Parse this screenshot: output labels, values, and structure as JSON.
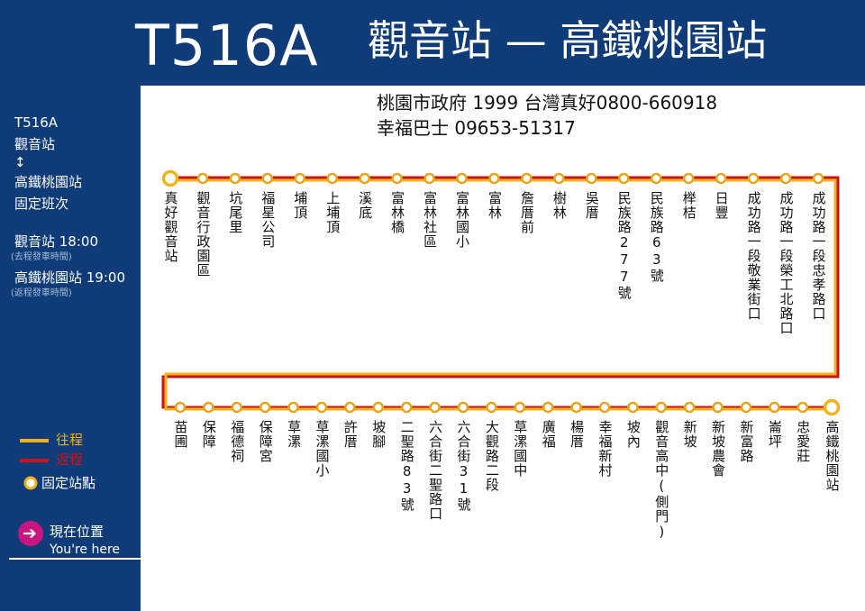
{
  "route": {
    "code": "T516A",
    "title": "觀音站 — 高鐵桃園站"
  },
  "contacts": [
    "桃園市政府 1999  台灣真好0800-660918",
    "幸福巴士 09653-51317"
  ],
  "sidebar": {
    "code": "T516A",
    "from": "觀音站",
    "arrow": "↕",
    "to": "高鐵桃園站",
    "schedule_label": "固定班次",
    "departures": [
      {
        "text": "觀音站 18:00",
        "note": "(去程發車時間)"
      },
      {
        "text": "高鐵桃園站 19:00",
        "note": "(返程發車時間)"
      }
    ]
  },
  "legend": {
    "outbound": "往程",
    "inbound": "返程",
    "fixed_stop": "固定站點",
    "here_cn": "現在位置",
    "here_en": "You're here"
  },
  "colors": {
    "navy": "#0f3c78",
    "outbound": "#f2b21a",
    "inbound": "#c8151b",
    "marker": "#c8157f"
  },
  "stops_outbound": [
    "真好觀音站",
    "觀音行政園區",
    "坑尾里",
    "福星公司",
    "埔頂",
    "上埔頂",
    "溪底",
    "富林橋",
    "富林社區",
    "富林國小",
    "富林",
    "詹厝前",
    "樹林",
    "吳厝",
    "民族路277號",
    "民族路63號",
    "榉桔",
    "日豐",
    "成功路一段敬業街口",
    "成功路一段榮工北路口",
    "成功路一段忠孝路口"
  ],
  "stops_return": [
    "苗圃",
    "保障",
    "福德祠",
    "保障宮",
    "草漯",
    "草漯國小",
    "許厝",
    "坡腳",
    "二聖路83號",
    "六合街二聖路口",
    "六合街31號",
    "大觀路二段",
    "草漯國中",
    "廣福",
    "楊厝",
    "幸福新村",
    "坡內",
    "觀音高中(側門)",
    "新坡",
    "新坡農會",
    "新富路",
    "崙坪",
    "忠愛莊",
    "高鐵桃園站"
  ]
}
